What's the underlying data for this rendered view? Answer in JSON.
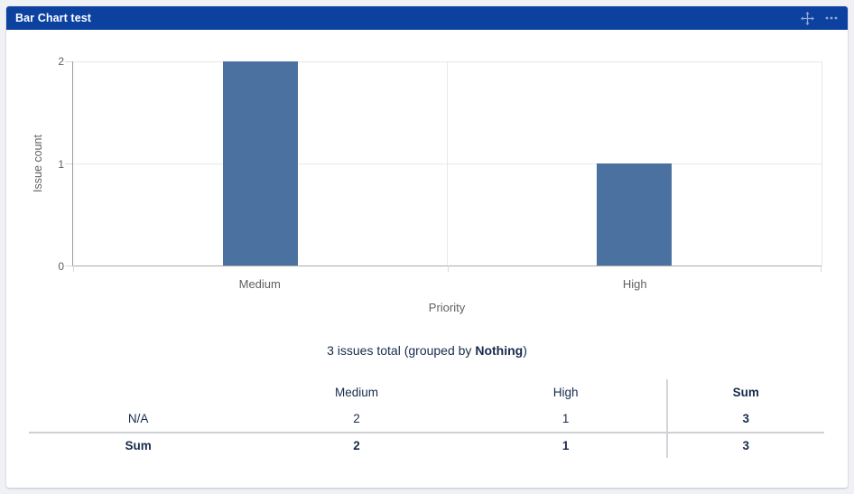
{
  "panel": {
    "title": "Bar Chart test",
    "header_bg": "#0c41a0",
    "icon_color": "#93a9d4",
    "icons": [
      "move-icon",
      "more-icon"
    ]
  },
  "chart_data": {
    "type": "bar",
    "categories": [
      "Medium",
      "High"
    ],
    "values": [
      2,
      1
    ],
    "title": "",
    "xlabel": "Priority",
    "ylabel": "Issue count",
    "ylim": [
      0,
      2
    ],
    "yticks": [
      0,
      1,
      2
    ],
    "bar_color": "#4a71a0",
    "grid": true,
    "legend": false
  },
  "summary": {
    "prefix": "3 issues total (grouped by ",
    "bold": "Nothing",
    "suffix": ")"
  },
  "table": {
    "columns": [
      "",
      "Medium",
      "High",
      "Sum"
    ],
    "rows": [
      {
        "label": "N/A",
        "bold": false,
        "values": [
          "2",
          "1",
          "3"
        ]
      },
      {
        "label": "Sum",
        "bold": true,
        "values": [
          "2",
          "1",
          "3"
        ]
      }
    ]
  }
}
